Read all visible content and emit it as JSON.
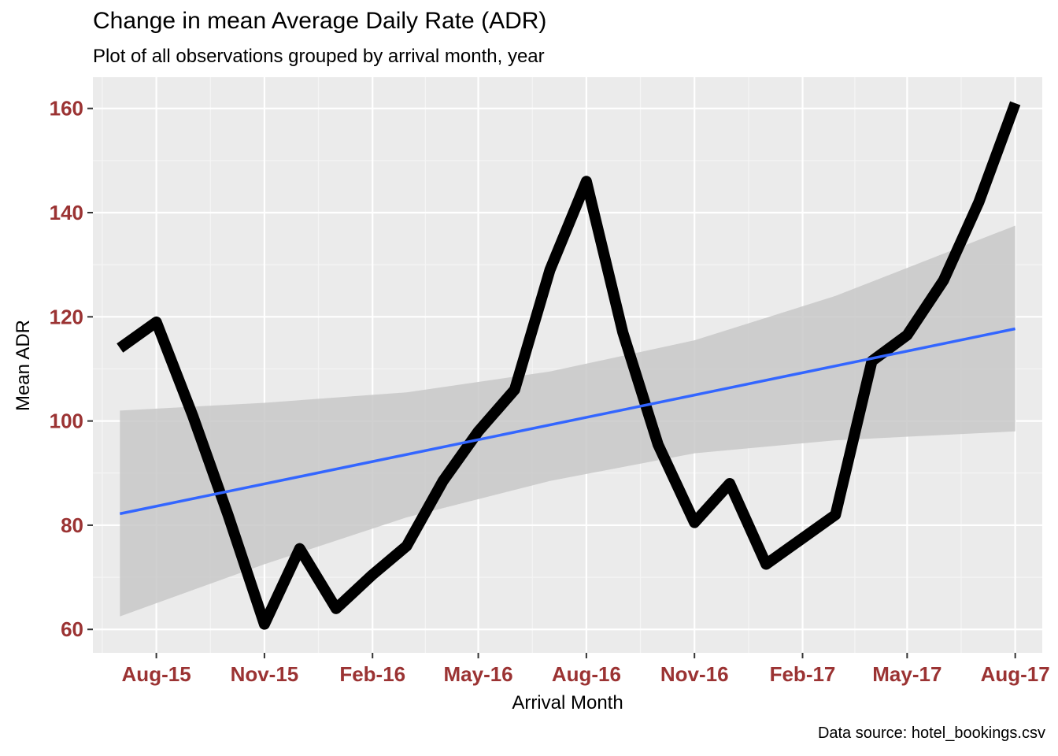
{
  "chart_data": {
    "type": "line",
    "title": "Change in mean Average Daily Rate (ADR)",
    "subtitle": "Plot of all observations grouped by arrival month, year",
    "caption": "Data source: hotel_bookings.csv",
    "xlabel": "Arrival Month",
    "ylabel": "Mean ADR",
    "x_ticks": [
      "Aug-15",
      "Nov-15",
      "Feb-16",
      "May-16",
      "Aug-16",
      "Nov-16",
      "Feb-17",
      "May-17",
      "Aug-17"
    ],
    "y_ticks": [
      60,
      80,
      100,
      120,
      140,
      160
    ],
    "ylim": [
      55.5,
      166
    ],
    "xlim": [
      "2015-06-08",
      "2017-08-24"
    ],
    "grid": true,
    "series": [
      {
        "color": "#000000",
        "x": [
          "2015-07-01",
          "2015-08-01",
          "2015-09-01",
          "2015-10-01",
          "2015-11-01",
          "2015-12-01",
          "2016-01-01",
          "2016-02-01",
          "2016-03-01",
          "2016-04-01",
          "2016-05-01",
          "2016-06-01",
          "2016-07-01",
          "2016-08-01",
          "2016-09-01",
          "2016-10-01",
          "2016-11-01",
          "2016-12-01",
          "2017-01-01",
          "2017-02-01",
          "2017-03-01",
          "2017-04-01",
          "2017-05-01",
          "2017-06-01",
          "2017-07-01",
          "2017-08-01"
        ],
        "values": [
          114,
          119,
          101,
          82,
          61,
          75.5,
          64,
          70.5,
          76,
          88.5,
          98,
          106,
          129,
          146,
          117,
          95.5,
          80.5,
          88,
          72.5,
          77.5,
          82,
          111.5,
          116.5,
          127,
          142,
          161
        ]
      }
    ],
    "trend": {
      "color": "#3366ff",
      "x": [
        "2015-07-01",
        "2017-08-01"
      ],
      "values": [
        82.2,
        117.7
      ],
      "ci": {
        "color": "#c8c8c8",
        "x": [
          "2015-07-01",
          "2015-11-01",
          "2016-03-01",
          "2016-07-01",
          "2016-11-01",
          "2017-03-01",
          "2017-08-01"
        ],
        "lower": [
          62.5,
          72.5,
          81.5,
          88.5,
          93.8,
          96.3,
          98.0
        ],
        "upper": [
          102.0,
          103.5,
          105.5,
          109.5,
          115.5,
          124.0,
          137.5
        ]
      }
    },
    "colors": {
      "panel": "#ebebeb",
      "grid_major": "#ffffff",
      "grid_minor": "#f5f5f5",
      "tick_label": "#9b3333"
    }
  }
}
